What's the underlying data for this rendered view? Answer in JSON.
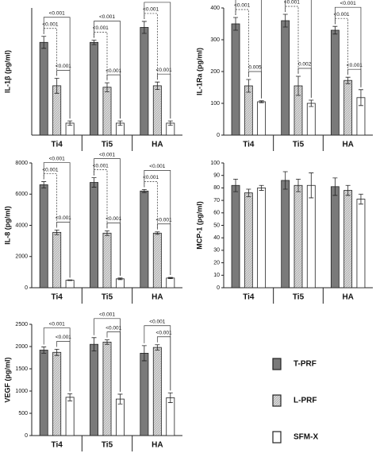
{
  "chart_data": [
    {
      "type": "bar",
      "y_label": "IL-1β (pg/ml)",
      "categories": [
        "Ti4",
        "Ti5",
        "HA"
      ],
      "ylim": [
        0,
        85
      ],
      "series": [
        {
          "name": "T-PRF",
          "color": "#7a7a7a",
          "values": [
            62,
            62,
            72
          ],
          "errors": [
            4,
            1.5,
            4
          ]
        },
        {
          "name": "L-PRF",
          "color": "#cfcfcf",
          "values": [
            33,
            32,
            33
          ],
          "errors": [
            5,
            3,
            2.5
          ]
        },
        {
          "name": "SFM-X",
          "color": "#ffffff",
          "values": [
            8,
            8,
            8
          ],
          "errors": [
            1.5,
            1.5,
            1.5
          ]
        }
      ],
      "annotations": [
        {
          "group": 0,
          "from": 0,
          "to": 1,
          "dashed": true,
          "text": "<0.001"
        },
        {
          "group": 0,
          "from": 0,
          "to": 2,
          "dashed": false,
          "text": "<0.001"
        },
        {
          "group": 0,
          "from": 1,
          "to": 2,
          "dashed": false,
          "text": "<0.001"
        },
        {
          "group": 1,
          "from": 0,
          "to": 1,
          "dashed": true,
          "text": "<0.001"
        },
        {
          "group": 1,
          "from": 0,
          "to": 2,
          "dashed": false,
          "text": "<0.001"
        },
        {
          "group": 1,
          "from": 1,
          "to": 2,
          "dashed": false,
          "text": "<0.001"
        },
        {
          "group": 2,
          "from": 0,
          "to": 1,
          "dashed": true,
          "text": "<0.001"
        },
        {
          "group": 2,
          "from": 0,
          "to": 2,
          "dashed": false,
          "text": "<0.001"
        },
        {
          "group": 2,
          "from": 1,
          "to": 2,
          "dashed": false,
          "text": "<0.001"
        }
      ]
    },
    {
      "type": "bar",
      "y_label": "IL-1Ra (pg/ml)",
      "categories": [
        "Ti4",
        "Ti5",
        "HA"
      ],
      "ylim": [
        0,
        400
      ],
      "yticks": [
        0,
        100,
        200,
        300,
        400
      ],
      "series": [
        {
          "color": "#7a7a7a",
          "values": [
            350,
            360,
            330
          ],
          "errors": [
            20,
            20,
            12
          ]
        },
        {
          "color": "#cfcfcf",
          "values": [
            155,
            155,
            172
          ],
          "errors": [
            20,
            30,
            10
          ]
        },
        {
          "color": "#ffffff",
          "values": [
            105,
            100,
            118
          ],
          "errors": [
            3,
            10,
            25
          ]
        }
      ],
      "annotations": [
        {
          "group": 0,
          "from": 0,
          "to": 1,
          "dashed": true,
          "text": "<0.001"
        },
        {
          "group": 0,
          "from": 0,
          "to": 2,
          "dashed": false,
          "text": "<0.001"
        },
        {
          "group": 0,
          "from": 1,
          "to": 2,
          "dashed": false,
          "text": "0.005"
        },
        {
          "group": 1,
          "from": 0,
          "to": 1,
          "dashed": true,
          "text": "<0.001"
        },
        {
          "group": 1,
          "from": 0,
          "to": 2,
          "dashed": false,
          "text": "<0.001"
        },
        {
          "group": 1,
          "from": 1,
          "to": 2,
          "dashed": false,
          "text": "0.002"
        },
        {
          "group": 2,
          "from": 0,
          "to": 1,
          "dashed": true,
          "text": "<0.001"
        },
        {
          "group": 2,
          "from": 0,
          "to": 2,
          "dashed": false,
          "text": "<0.001"
        },
        {
          "group": 2,
          "from": 1,
          "to": 2,
          "dashed": false,
          "text": "<0.001"
        }
      ]
    },
    {
      "type": "bar",
      "y_label": "IL-8 (pg/ml)",
      "categories": [
        "Ti4",
        "Ti5",
        "HA"
      ],
      "ylim": [
        0,
        8000
      ],
      "yticks": [
        0,
        2000,
        4000,
        6000,
        8000
      ],
      "series": [
        {
          "color": "#7a7a7a",
          "values": [
            6600,
            6750,
            6200
          ],
          "errors": [
            200,
            300,
            100
          ]
        },
        {
          "color": "#cfcfcf",
          "values": [
            3550,
            3500,
            3500
          ],
          "errors": [
            150,
            150,
            80
          ]
        },
        {
          "color": "#ffffff",
          "values": [
            480,
            570,
            620
          ],
          "errors": [
            20,
            50,
            40
          ]
        }
      ],
      "annotations": [
        {
          "group": 0,
          "from": 0,
          "to": 1,
          "dashed": true,
          "text": "<0.001"
        },
        {
          "group": 0,
          "from": 0,
          "to": 2,
          "dashed": false,
          "text": "<0.001"
        },
        {
          "group": 0,
          "from": 1,
          "to": 2,
          "dashed": false,
          "text": "<0.001"
        },
        {
          "group": 1,
          "from": 0,
          "to": 1,
          "dashed": true,
          "text": "<0.001"
        },
        {
          "group": 1,
          "from": 0,
          "to": 2,
          "dashed": false,
          "text": "<0.001"
        },
        {
          "group": 1,
          "from": 1,
          "to": 2,
          "dashed": false,
          "text": "<0.001"
        },
        {
          "group": 2,
          "from": 0,
          "to": 1,
          "dashed": true,
          "text": "<0.001"
        },
        {
          "group": 2,
          "from": 0,
          "to": 2,
          "dashed": false,
          "text": "<0.001"
        },
        {
          "group": 2,
          "from": 1,
          "to": 2,
          "dashed": false,
          "text": "<0.001"
        }
      ]
    },
    {
      "type": "bar",
      "y_label": "MCP-1 (pg/ml)",
      "categories": [
        "Ti4",
        "Ti5",
        "HA"
      ],
      "ylim": [
        0,
        100
      ],
      "yticks": [
        0,
        10,
        20,
        30,
        40,
        50,
        60,
        70,
        80,
        90,
        100
      ],
      "series": [
        {
          "color": "#7a7a7a",
          "values": [
            82,
            86,
            81
          ],
          "errors": [
            5,
            7,
            7
          ]
        },
        {
          "color": "#cfcfcf",
          "values": [
            76,
            82,
            78
          ],
          "errors": [
            3,
            5,
            4
          ]
        },
        {
          "color": "#ffffff",
          "values": [
            80,
            82,
            71
          ],
          "errors": [
            2,
            10,
            4
          ]
        }
      ],
      "annotations": []
    },
    {
      "type": "bar",
      "y_label": "VEGF (pg/ml)",
      "categories": [
        "Ti4",
        "Ti5",
        "HA"
      ],
      "ylim": [
        0,
        2500
      ],
      "yticks": [
        0,
        500,
        1000,
        1500,
        2000,
        2500
      ],
      "series": [
        {
          "color": "#7a7a7a",
          "values": [
            1920,
            2050,
            1850
          ],
          "errors": [
            70,
            150,
            170
          ]
        },
        {
          "color": "#cfcfcf",
          "values": [
            1870,
            2100,
            1980
          ],
          "errors": [
            70,
            50,
            60
          ]
        },
        {
          "color": "#ffffff",
          "values": [
            860,
            820,
            850
          ],
          "errors": [
            80,
            110,
            110
          ]
        }
      ],
      "annotations": [
        {
          "group": 0,
          "from": 0,
          "to": 2,
          "dashed": false,
          "text": "<0.001"
        },
        {
          "group": 0,
          "from": 1,
          "to": 2,
          "dashed": false,
          "text": "<0.001"
        },
        {
          "group": 1,
          "from": 0,
          "to": 2,
          "dashed": false,
          "text": "<0.001"
        },
        {
          "group": 1,
          "from": 1,
          "to": 2,
          "dashed": false,
          "text": "<0.001"
        },
        {
          "group": 2,
          "from": 0,
          "to": 2,
          "dashed": false,
          "text": "<0.001"
        },
        {
          "group": 2,
          "from": 1,
          "to": 2,
          "dashed": false,
          "text": "<0.001"
        }
      ]
    }
  ]
}
